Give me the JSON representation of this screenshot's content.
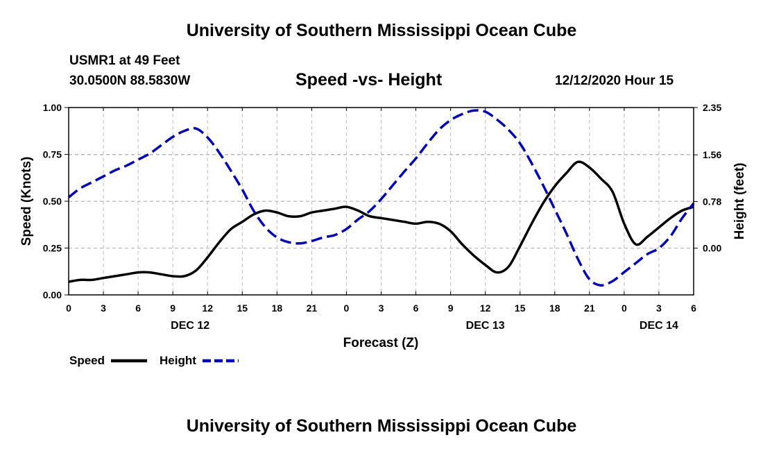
{
  "header": {
    "title": "University of Southern Mississippi Ocean Cube",
    "station": "USMR1 at 49 Feet",
    "coords": "30.0500N 88.5830W",
    "chart_title": "Speed -vs- Height",
    "datetime": "12/12/2020 Hour 15"
  },
  "footer": {
    "title": "University of Southern Mississippi Ocean Cube"
  },
  "colors": {
    "speed": "#000000",
    "height": "#0000cc",
    "grid": "#bdbdbd"
  },
  "chart_data": {
    "type": "line",
    "title": "Speed -vs- Height",
    "xlabel": "Forecast (Z)",
    "ylabel": "Speed (Knots)",
    "y2label": "Height (feet)",
    "x_unit": "hours since DEC 12 00Z",
    "xlim": [
      0,
      54
    ],
    "ylim": [
      0,
      1.0
    ],
    "y2lim": [
      -0.78,
      2.35
    ],
    "x_ticks": [
      0,
      3,
      6,
      9,
      12,
      15,
      18,
      21,
      24,
      27,
      30,
      33,
      36,
      39,
      42,
      45,
      48,
      51,
      54
    ],
    "x_tick_labels": [
      "0",
      "3",
      "6",
      "9",
      "12",
      "15",
      "18",
      "21",
      "0",
      "3",
      "6",
      "9",
      "12",
      "15",
      "18",
      "21",
      "0",
      "3",
      "6"
    ],
    "y_ticks": [
      0,
      0.25,
      0.5,
      0.75,
      1.0
    ],
    "y_tick_labels": [
      "0.00",
      "0.25",
      "0.50",
      "0.75",
      "1.00"
    ],
    "y2_ticks": [
      0.0,
      0.78,
      1.56,
      2.35
    ],
    "y2_tick_labels": [
      "0.00",
      "0.78",
      "1.56",
      "2.35"
    ],
    "date_labels": [
      {
        "x": 10.5,
        "label": "DEC 12"
      },
      {
        "x": 36,
        "label": "DEC 13"
      },
      {
        "x": 51,
        "label": "DEC 14"
      }
    ],
    "grid": true,
    "legend_position": "bottom-left",
    "series": [
      {
        "name": "Speed",
        "axis": "left",
        "style": "solid",
        "color": "#000000",
        "x": [
          0,
          1,
          2,
          3,
          4,
          5,
          6,
          7,
          8,
          9,
          10,
          11,
          12,
          13,
          14,
          15,
          16,
          17,
          18,
          19,
          20,
          21,
          22,
          23,
          24,
          25,
          26,
          27,
          28,
          29,
          30,
          31,
          32,
          33,
          34,
          35,
          36,
          37,
          38,
          39,
          40,
          41,
          42,
          43,
          44,
          45,
          46,
          47,
          48,
          49,
          50,
          51,
          52,
          53,
          54
        ],
        "values": [
          0.07,
          0.08,
          0.08,
          0.09,
          0.1,
          0.11,
          0.12,
          0.12,
          0.11,
          0.1,
          0.1,
          0.13,
          0.2,
          0.28,
          0.35,
          0.39,
          0.43,
          0.45,
          0.44,
          0.42,
          0.42,
          0.44,
          0.45,
          0.46,
          0.47,
          0.45,
          0.42,
          0.41,
          0.4,
          0.39,
          0.38,
          0.39,
          0.38,
          0.34,
          0.27,
          0.21,
          0.16,
          0.12,
          0.15,
          0.26,
          0.38,
          0.49,
          0.58,
          0.65,
          0.71,
          0.68,
          0.62,
          0.55,
          0.38,
          0.27,
          0.31,
          0.36,
          0.41,
          0.45,
          0.47
        ]
      },
      {
        "name": "Height",
        "axis": "right",
        "style": "dashed",
        "color": "#0000cc",
        "x": [
          0,
          1,
          2,
          3,
          4,
          5,
          6,
          7,
          8,
          9,
          10,
          11,
          12,
          13,
          14,
          15,
          16,
          17,
          18,
          19,
          20,
          21,
          22,
          23,
          24,
          25,
          26,
          27,
          28,
          29,
          30,
          31,
          32,
          33,
          34,
          35,
          36,
          37,
          38,
          39,
          40,
          41,
          42,
          43,
          44,
          45,
          46,
          47,
          48,
          49,
          50,
          51,
          52,
          53,
          54
        ],
        "values": [
          0.85,
          1.0,
          1.1,
          1.2,
          1.3,
          1.38,
          1.48,
          1.58,
          1.72,
          1.86,
          1.96,
          2.0,
          1.85,
          1.6,
          1.3,
          0.98,
          0.62,
          0.35,
          0.18,
          0.1,
          0.08,
          0.12,
          0.18,
          0.22,
          0.32,
          0.48,
          0.62,
          0.82,
          1.05,
          1.28,
          1.5,
          1.75,
          1.98,
          2.14,
          2.24,
          2.3,
          2.28,
          2.15,
          1.98,
          1.75,
          1.42,
          1.05,
          0.65,
          0.25,
          -0.18,
          -0.52,
          -0.62,
          -0.55,
          -0.4,
          -0.25,
          -0.1,
          0.0,
          0.2,
          0.5,
          0.75
        ]
      }
    ]
  }
}
